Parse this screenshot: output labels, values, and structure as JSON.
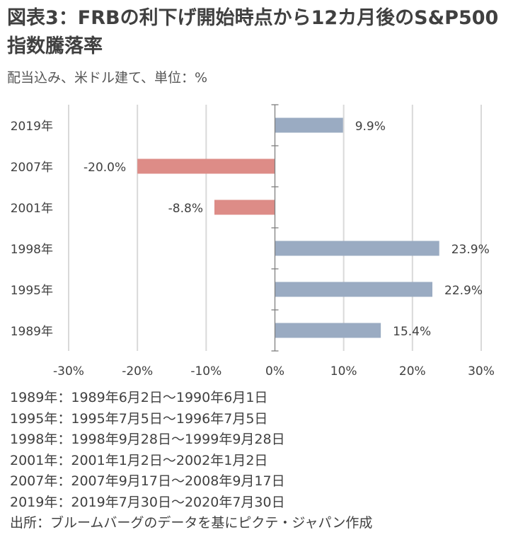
{
  "title": "図表3：FRBの利下げ開始時点から12カ月後のS&P500指数騰落率",
  "subtitle": "配当込み、米ドル建て、単位：%",
  "chart_data": {
    "type": "bar",
    "orientation": "horizontal",
    "categories": [
      "2019年",
      "2007年",
      "2001年",
      "1998年",
      "1995年",
      "1989年"
    ],
    "values": [
      9.9,
      -20.0,
      -8.8,
      23.9,
      22.9,
      15.4
    ],
    "value_labels": [
      "9.9%",
      "-20.0%",
      "-8.8%",
      "23.9%",
      "22.9%",
      "15.4%"
    ],
    "xlim": [
      -30,
      30
    ],
    "xticks": [
      -30,
      -20,
      -10,
      0,
      10,
      20,
      30
    ],
    "xtick_labels": [
      "-30%",
      "-20%",
      "-10%",
      "0%",
      "10%",
      "20%",
      "30%"
    ],
    "colors": {
      "positive": "#9aabc2",
      "negative": "#dd8c87"
    },
    "grid": true,
    "xlabel": "",
    "ylabel": ""
  },
  "notes": [
    "1989年：1989年6月2日～1990年6月1日",
    "1995年：1995年7月5日～1996年7月5日",
    "1998年：1998年9月28日～1999年9月28日",
    "2001年：2001年1月2日～2002年1月2日",
    "2007年：2007年9月17日～2008年9月17日",
    "2019年：2019年7月30日～2020年7月30日",
    "出所：ブルームバーグのデータを基にピクテ・ジャパン作成"
  ]
}
